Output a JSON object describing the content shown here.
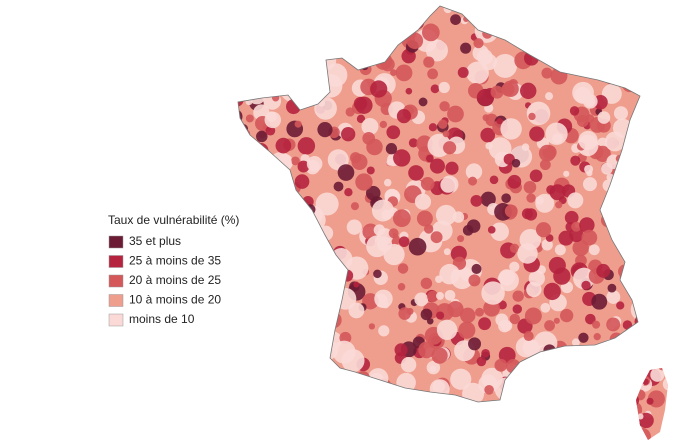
{
  "legend": {
    "title": "Taux de vulnérabilité (%)",
    "items": [
      {
        "label": "35 et plus",
        "color": "#6b1b34"
      },
      {
        "label": "25 à moins de 35",
        "color": "#b5243e"
      },
      {
        "label": "20 à moins de 25",
        "color": "#d4575a"
      },
      {
        "label": "10 à moins de 20",
        "color": "#ef9e8e"
      },
      {
        "label": "moins de 10",
        "color": "#fad9d6"
      }
    ]
  }
}
